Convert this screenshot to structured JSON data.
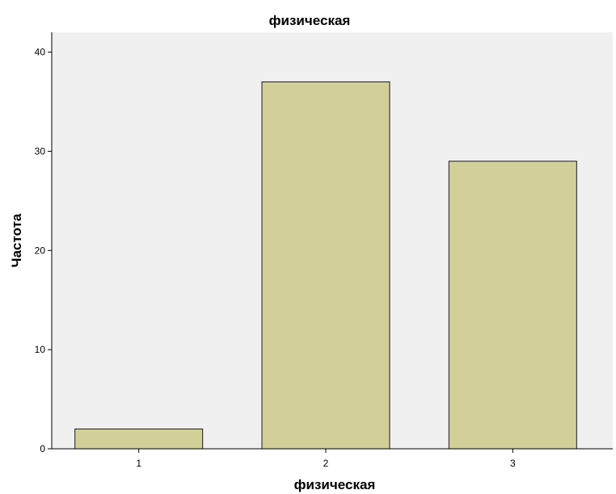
{
  "chart_data": {
    "type": "bar",
    "title": "физическая",
    "xlabel": "физическая",
    "ylabel": "Частота",
    "categories": [
      "1",
      "2",
      "3"
    ],
    "values": [
      2,
      37,
      29
    ],
    "ylim": [
      0,
      42
    ],
    "yticks": [
      0,
      10,
      20,
      30,
      40
    ],
    "grid": false,
    "legend": "none",
    "colors": {
      "bar_fill": "#d3cf98",
      "bar_stroke": "#1a1a1a",
      "plot_background": "#f0f0f0",
      "axis": "#000000"
    }
  }
}
